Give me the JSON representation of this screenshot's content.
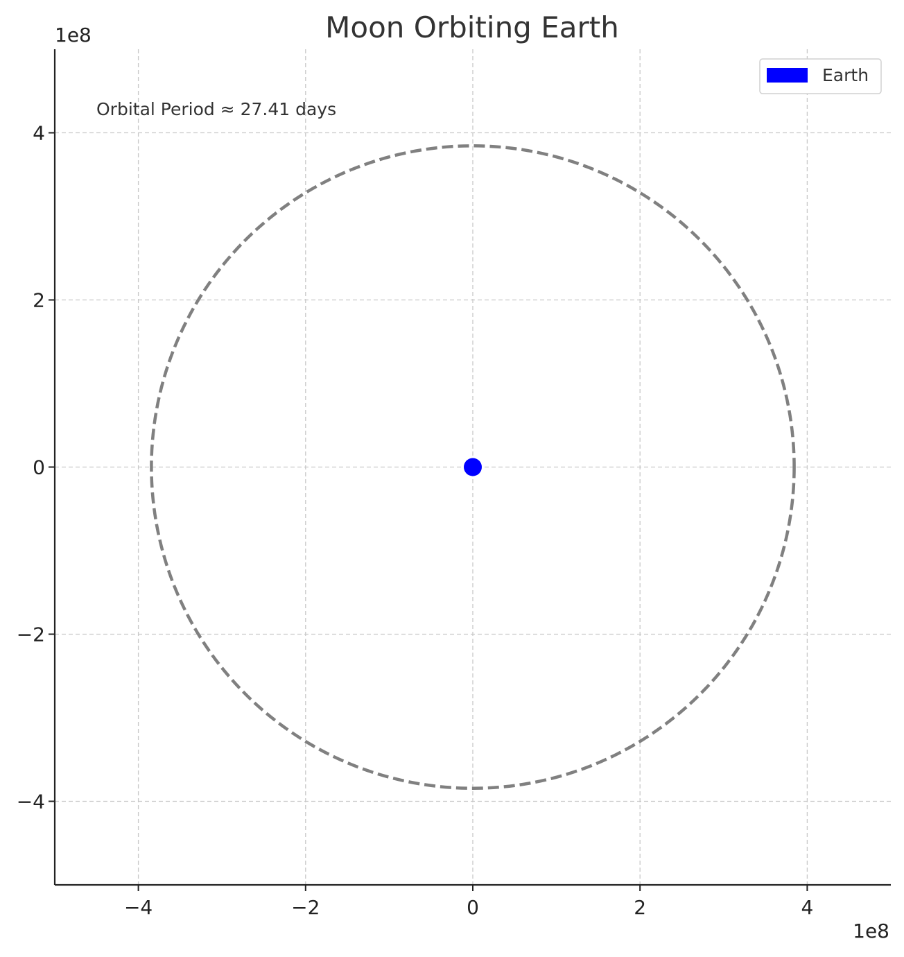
{
  "chart_data": {
    "type": "scatter",
    "title": "Moon Orbiting Earth",
    "xlabel": "",
    "ylabel": "",
    "x_offset_label": "1e8",
    "y_offset_label": "1e8",
    "xlim": [
      -5,
      5
    ],
    "ylim": [
      -5,
      5
    ],
    "x_ticks": [
      -4,
      -2,
      0,
      2,
      4
    ],
    "y_ticks": [
      -4,
      -2,
      0,
      2,
      4
    ],
    "x_tick_labels": [
      "−4",
      "−2",
      "0",
      "2",
      "4"
    ],
    "y_tick_labels": [
      "−4",
      "−2",
      "0",
      "2",
      "4"
    ],
    "grid": true,
    "grid_style": "dashed",
    "legend_position": "top-right",
    "series": [
      {
        "name": "Earth",
        "type": "point",
        "x": [
          0
        ],
        "y": [
          0
        ],
        "color": "#0000ff"
      },
      {
        "type": "orbit",
        "center": [
          0,
          0
        ],
        "radius": 3.844,
        "linestyle": "dashed",
        "color": "#808080"
      }
    ],
    "annotations": [
      {
        "text": "Orbital Period ≈ 27.41 days"
      }
    ]
  }
}
